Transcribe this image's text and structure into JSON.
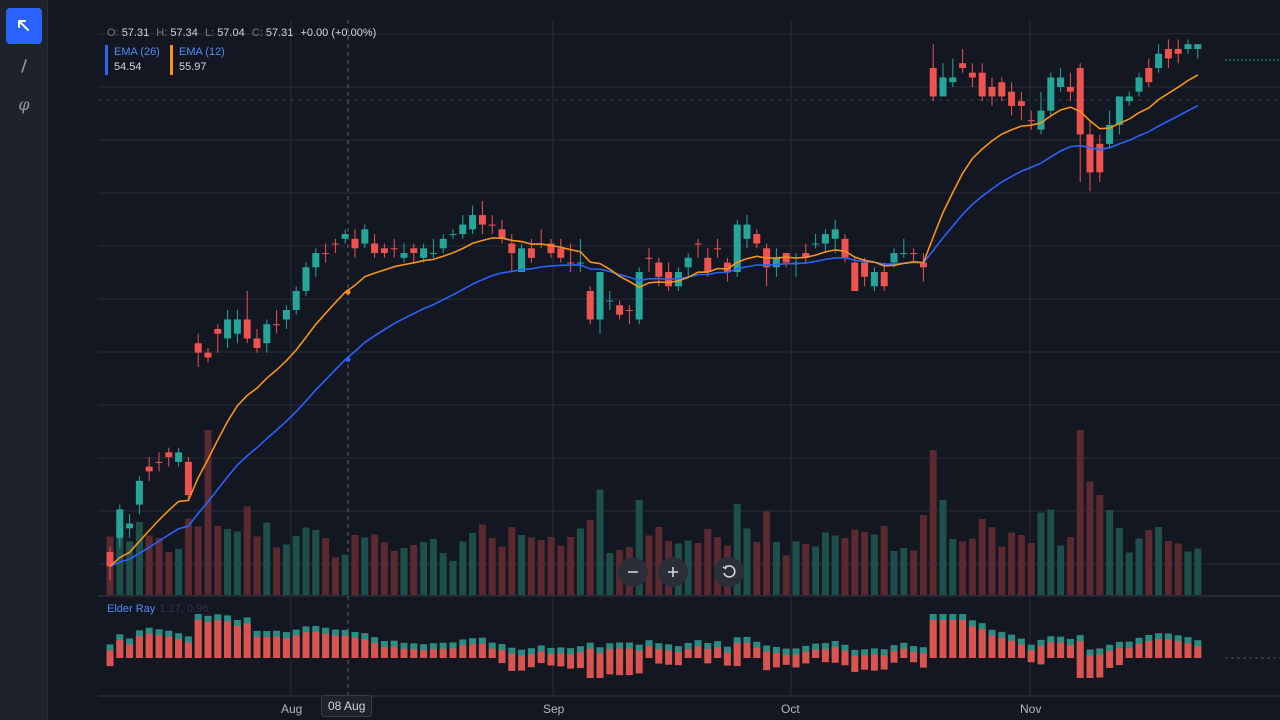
{
  "toolbar": {
    "tools": [
      {
        "name": "cursor-tool",
        "icon": "arrow-cursor-icon",
        "active": true
      },
      {
        "name": "trendline-tool",
        "icon": "line-icon",
        "active": false
      },
      {
        "name": "fib-tool",
        "icon": "phi-icon",
        "active": false
      }
    ]
  },
  "ohlc": {
    "o_label": "O:",
    "o": "57.31",
    "h_label": "H:",
    "h": "57.34",
    "l_label": "L:",
    "l": "57.04",
    "c_label": "C:",
    "c": "57.31",
    "change": "+0.00 (+0.00%)"
  },
  "indicators": {
    "ema26": {
      "label": "EMA (26)",
      "value": "54.54",
      "color": "#2962ff"
    },
    "ema12": {
      "label": "EMA (12)",
      "value": "55.97",
      "color": "#f7931a"
    },
    "elder_ray": {
      "label": "Elder Ray",
      "values": "1.27, 0.96"
    }
  },
  "time_axis": {
    "labels": [
      "Aug",
      "Sep",
      "Oct",
      "Nov"
    ],
    "crosshair": "08 Aug"
  },
  "colors": {
    "up": "#26a69a",
    "down": "#ef5350",
    "ema26": "#2962ff",
    "ema12": "#f7931a",
    "background": "#131722",
    "grid": "#2a2e39"
  },
  "chart_data": {
    "type": "candlestick",
    "candles": [
      [
        49.8,
        49.5,
        49.9,
        49.2,
        "down"
      ],
      [
        50.1,
        50.7,
        50.8,
        49.9,
        "up"
      ],
      [
        50.3,
        50.4,
        50.6,
        50.1,
        "up"
      ],
      [
        50.8,
        51.3,
        51.4,
        50.6,
        "up"
      ],
      [
        51.6,
        51.5,
        51.8,
        51.3,
        "down"
      ],
      [
        51.7,
        51.7,
        51.9,
        51.5,
        "down"
      ],
      [
        51.9,
        51.8,
        52.0,
        51.6,
        "down"
      ],
      [
        51.7,
        51.9,
        52.0,
        51.6,
        "up"
      ],
      [
        51.7,
        51.0,
        51.8,
        50.9,
        "down"
      ],
      [
        54.2,
        54.0,
        54.4,
        53.7,
        "down"
      ],
      [
        54.0,
        53.9,
        54.1,
        53.8,
        "down"
      ],
      [
        54.5,
        54.4,
        54.6,
        54.0,
        "down"
      ],
      [
        54.3,
        54.7,
        54.9,
        54.1,
        "up"
      ],
      [
        54.4,
        54.7,
        54.9,
        54.2,
        "up"
      ],
      [
        54.7,
        54.3,
        55.3,
        54.2,
        "down"
      ],
      [
        54.3,
        54.1,
        54.5,
        54.0,
        "down"
      ],
      [
        54.2,
        54.6,
        54.7,
        54.0,
        "up"
      ],
      [
        54.6,
        54.6,
        54.9,
        54.4,
        "down"
      ],
      [
        54.7,
        54.9,
        55.0,
        54.5,
        "up"
      ],
      [
        54.9,
        55.3,
        55.4,
        54.8,
        "up"
      ],
      [
        55.3,
        55.8,
        55.9,
        55.2,
        "up"
      ],
      [
        55.8,
        56.1,
        56.2,
        55.6,
        "up"
      ],
      [
        56.1,
        56.1,
        56.3,
        55.9,
        "down"
      ],
      [
        56.3,
        56.3,
        56.4,
        56.1,
        "down"
      ],
      [
        56.4,
        56.5,
        56.6,
        56.3,
        "up"
      ],
      [
        56.4,
        56.2,
        56.6,
        56.0,
        "down"
      ],
      [
        56.3,
        56.6,
        56.7,
        56.2,
        "up"
      ],
      [
        56.3,
        56.1,
        56.5,
        56.0,
        "down"
      ],
      [
        56.2,
        56.1,
        56.3,
        56.0,
        "down"
      ],
      [
        56.2,
        56.2,
        56.4,
        56.0,
        "down"
      ],
      [
        56.0,
        56.1,
        56.3,
        55.9,
        "up"
      ],
      [
        56.2,
        56.1,
        56.3,
        55.9,
        "down"
      ],
      [
        56.0,
        56.2,
        56.3,
        55.9,
        "up"
      ],
      [
        56.1,
        56.1,
        56.4,
        56.0,
        "up"
      ],
      [
        56.2,
        56.4,
        56.5,
        56.1,
        "up"
      ],
      [
        56.5,
        56.5,
        56.6,
        56.4,
        "up"
      ],
      [
        56.5,
        56.7,
        56.9,
        56.4,
        "up"
      ],
      [
        56.6,
        56.9,
        57.1,
        56.5,
        "up"
      ],
      [
        56.9,
        56.7,
        57.2,
        56.5,
        "down"
      ],
      [
        56.7,
        56.7,
        56.9,
        56.5,
        "down"
      ],
      [
        56.6,
        56.4,
        56.8,
        56.3,
        "down"
      ],
      [
        56.3,
        56.1,
        56.5,
        55.7,
        "down"
      ],
      [
        55.7,
        56.2,
        56.3,
        55.7,
        "up"
      ],
      [
        56.2,
        56.0,
        56.4,
        55.9,
        "down"
      ],
      [
        56.3,
        56.3,
        56.6,
        56.2,
        "down"
      ],
      [
        56.3,
        56.1,
        56.4,
        56.0,
        "down"
      ],
      [
        56.2,
        56.0,
        56.4,
        55.9,
        "down"
      ],
      [
        55.9,
        55.9,
        56.3,
        55.7,
        "down"
      ],
      [
        55.9,
        55.9,
        56.4,
        55.7,
        "up"
      ],
      [
        55.3,
        54.7,
        55.4,
        54.6,
        "down"
      ],
      [
        54.7,
        55.7,
        55.7,
        54.4,
        "up"
      ],
      [
        55.1,
        55.1,
        55.3,
        54.9,
        "up"
      ],
      [
        55.0,
        54.8,
        55.1,
        54.7,
        "down"
      ],
      [
        54.9,
        54.9,
        55.0,
        54.6,
        "down"
      ],
      [
        55.7,
        54.7,
        55.8,
        54.6,
        "up"
      ],
      [
        56.0,
        56.0,
        56.2,
        55.7,
        "down"
      ],
      [
        55.9,
        55.6,
        56.0,
        55.4,
        "down"
      ],
      [
        55.7,
        55.4,
        55.9,
        55.3,
        "down"
      ],
      [
        55.4,
        55.7,
        55.8,
        55.3,
        "up"
      ],
      [
        55.8,
        56.0,
        56.1,
        55.6,
        "up"
      ],
      [
        56.3,
        56.3,
        56.4,
        56.0,
        "down"
      ],
      [
        56.0,
        55.7,
        56.2,
        55.6,
        "down"
      ],
      [
        56.2,
        56.2,
        56.4,
        56.0,
        "down"
      ],
      [
        55.9,
        55.7,
        56.0,
        55.5,
        "down"
      ],
      [
        55.7,
        56.7,
        56.8,
        55.6,
        "up"
      ],
      [
        56.7,
        56.4,
        56.9,
        56.2,
        "up"
      ],
      [
        56.5,
        56.3,
        56.6,
        56.2,
        "down"
      ],
      [
        56.2,
        55.8,
        56.3,
        55.4,
        "down"
      ],
      [
        55.8,
        56.0,
        56.2,
        55.6,
        "up"
      ],
      [
        55.9,
        56.1,
        56.1,
        55.8,
        "down"
      ],
      [
        55.9,
        55.9,
        56.1,
        55.6,
        "up"
      ],
      [
        56.0,
        56.1,
        56.3,
        55.9,
        "down"
      ],
      [
        56.3,
        56.3,
        56.5,
        56.2,
        "up"
      ],
      [
        56.3,
        56.5,
        56.6,
        56.1,
        "up"
      ],
      [
        56.6,
        56.4,
        56.8,
        56.1,
        "up"
      ],
      [
        56.4,
        56.0,
        56.5,
        55.9,
        "down"
      ],
      [
        55.9,
        55.3,
        56.0,
        55.3,
        "down"
      ],
      [
        55.9,
        55.6,
        56.0,
        55.4,
        "down"
      ],
      [
        55.4,
        55.7,
        55.8,
        55.3,
        "up"
      ],
      [
        55.7,
        55.4,
        55.9,
        55.3,
        "down"
      ],
      [
        56.1,
        55.9,
        56.2,
        55.8,
        "up"
      ],
      [
        56.1,
        56.1,
        56.4,
        56.0,
        "up"
      ],
      [
        56.1,
        56.1,
        56.2,
        55.9,
        "down"
      ],
      [
        55.9,
        55.8,
        56.1,
        55.5,
        "down"
      ],
      [
        60.0,
        59.4,
        60.5,
        59.3,
        "down"
      ],
      [
        59.4,
        59.8,
        60.1,
        59.4,
        "up"
      ],
      [
        59.8,
        59.7,
        60.2,
        59.6,
        "up"
      ],
      [
        60.1,
        60.0,
        60.4,
        59.9,
        "down"
      ],
      [
        59.9,
        59.8,
        60.1,
        59.6,
        "down"
      ],
      [
        59.9,
        59.4,
        60.1,
        59.3,
        "down"
      ],
      [
        59.6,
        59.4,
        59.8,
        59.2,
        "down"
      ],
      [
        59.7,
        59.4,
        59.8,
        59.3,
        "down"
      ],
      [
        59.5,
        59.2,
        59.7,
        59.0,
        "down"
      ],
      [
        59.3,
        59.2,
        59.5,
        58.9,
        "down"
      ],
      [
        58.9,
        58.9,
        59.1,
        58.7,
        "down"
      ],
      [
        58.7,
        59.1,
        59.5,
        58.6,
        "up"
      ],
      [
        59.1,
        59.8,
        59.9,
        59.0,
        "up"
      ],
      [
        59.6,
        59.8,
        60.0,
        59.5,
        "up"
      ],
      [
        59.6,
        59.5,
        59.9,
        59.3,
        "down"
      ],
      [
        60.0,
        58.6,
        60.1,
        57.6,
        "down"
      ],
      [
        58.6,
        57.8,
        58.9,
        57.4,
        "down"
      ],
      [
        58.4,
        57.8,
        58.6,
        57.6,
        "down"
      ],
      [
        58.4,
        58.8,
        59.1,
        58.3,
        "up"
      ],
      [
        58.8,
        59.4,
        59.4,
        58.6,
        "up"
      ],
      [
        59.3,
        59.4,
        59.5,
        59.2,
        "up"
      ],
      [
        59.5,
        59.8,
        59.9,
        59.4,
        "up"
      ],
      [
        60.0,
        59.7,
        60.2,
        59.6,
        "down"
      ],
      [
        60.0,
        60.3,
        60.5,
        59.9,
        "up"
      ],
      [
        60.4,
        60.2,
        60.6,
        60.0,
        "down"
      ],
      [
        60.4,
        60.3,
        60.6,
        60.1,
        "down"
      ],
      [
        60.4,
        60.5,
        60.6,
        60.3,
        "up"
      ],
      [
        60.4,
        60.5,
        60.5,
        60.2,
        "up"
      ]
    ],
    "ema26_label": "EMA (26)",
    "ema12_label": "EMA (12)"
  }
}
